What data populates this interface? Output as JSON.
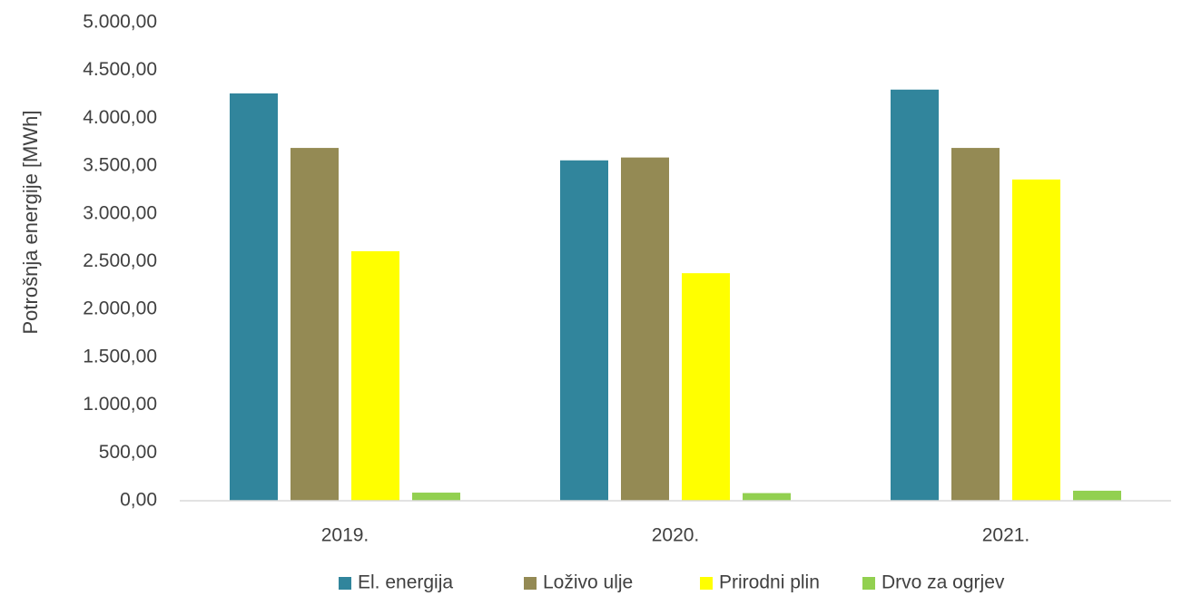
{
  "chart_data": {
    "type": "bar",
    "title": "",
    "xlabel": "",
    "ylabel": "Potrošnja energije [MWh]",
    "ylim": [
      0,
      5000
    ],
    "yticks": [
      0,
      500,
      1000,
      1500,
      2000,
      2500,
      3000,
      3500,
      4000,
      4500,
      5000
    ],
    "ytick_labels": [
      "0,00",
      "500,00",
      "1.000,00",
      "1.500,00",
      "2.000,00",
      "2.500,00",
      "3.000,00",
      "3.500,00",
      "4.000,00",
      "4.500,00",
      "5.000,00"
    ],
    "categories": [
      "2019.",
      "2020.",
      "2021."
    ],
    "grid": false,
    "legend_position": "bottom",
    "series": [
      {
        "name": "El. energija",
        "color": "#31859C",
        "values": [
          4260,
          3560,
          4300
        ]
      },
      {
        "name": "Loživo ulje",
        "color": "#948A54",
        "values": [
          3690,
          3590,
          3690
        ]
      },
      {
        "name": "Prirodni plin",
        "color": "#FFFF00",
        "values": [
          2610,
          2380,
          3360
        ]
      },
      {
        "name": "Drvo za ogrjev",
        "color": "#92D050",
        "values": [
          85,
          80,
          105
        ]
      }
    ]
  }
}
